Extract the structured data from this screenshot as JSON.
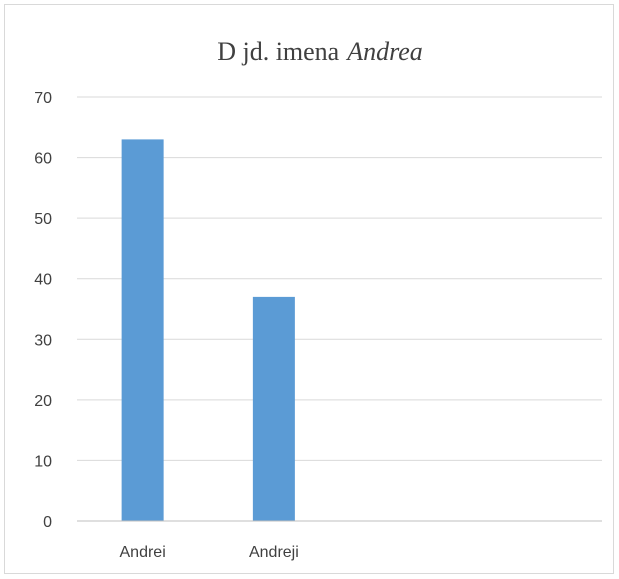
{
  "chart_data": {
    "type": "bar",
    "title": "D jd. imena",
    "title_emphasis": "Andrea",
    "categories": [
      "Andrei",
      "Andreji",
      "",
      ""
    ],
    "values": [
      63,
      37,
      null,
      null
    ],
    "xlabel": "",
    "ylabel": "",
    "ylim": [
      0,
      70
    ],
    "yticks": [
      0,
      10,
      20,
      30,
      40,
      50,
      60,
      70
    ],
    "grid": true,
    "legend": "none",
    "bar_color": "#5b9bd5"
  }
}
